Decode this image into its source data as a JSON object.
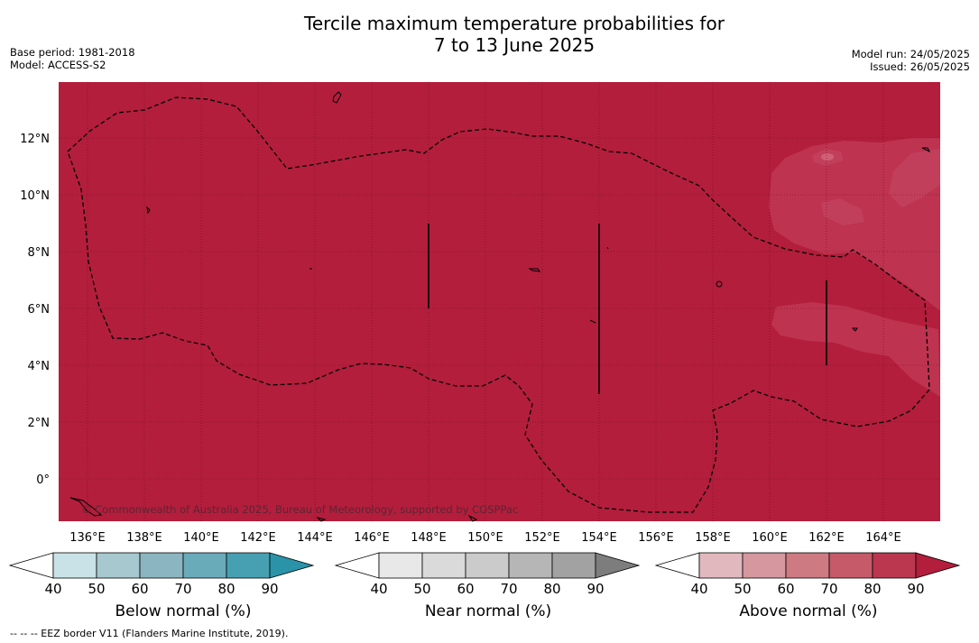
{
  "title": {
    "line1": "Tercile maximum temperature probabilities for",
    "line2": "7 to 13 June 2025"
  },
  "meta_left": {
    "base_period": "Base period: 1981-2018",
    "model": "Model: ACCESS-S2"
  },
  "meta_right": {
    "model_run": "Model run: 24/05/2025",
    "issued": "Issued: 26/05/2025"
  },
  "map": {
    "lat_labels": [
      "12°N",
      "10°N",
      "8°N",
      "6°N",
      "4°N",
      "2°N",
      "0°"
    ],
    "lon_labels": [
      "136°E",
      "138°E",
      "140°E",
      "142°E",
      "144°E",
      "146°E",
      "148°E",
      "150°E",
      "152°E",
      "154°E",
      "156°E",
      "158°E",
      "160°E",
      "162°E",
      "164°E"
    ],
    "copyright": "© Commonwealth of Australia 2025, Bureau of Meteorology, supported by COSPPac",
    "colors": {
      "above_dominant": "#b31e3c",
      "above_80": "#be3350"
    }
  },
  "colorbars": [
    {
      "label": "Below normal (%)",
      "ticks": [
        "40",
        "50",
        "60",
        "70",
        "80",
        "90"
      ],
      "colors": [
        "#ffffff",
        "#c9e2e8",
        "#a7c8ce",
        "#8bb6c1",
        "#6aabba",
        "#46a0b2",
        "#2a93a8"
      ]
    },
    {
      "label": "Near normal (%)",
      "ticks": [
        "40",
        "50",
        "60",
        "70",
        "80",
        "90"
      ],
      "colors": [
        "#ffffff",
        "#e8e8e8",
        "#dadada",
        "#cbcbcb",
        "#b6b6b6",
        "#a2a2a2",
        "#7d7d7d"
      ]
    },
    {
      "label": "Above normal (%)",
      "ticks": [
        "40",
        "50",
        "60",
        "70",
        "80",
        "90"
      ],
      "colors": [
        "#ffffff",
        "#e2b8bf",
        "#d6979e",
        "#ce7a82",
        "#c65a69",
        "#bb3750",
        "#b31e3c"
      ]
    }
  ],
  "footnote": "--  --  -- EEZ border V11 (Flanders Marine Institute, 2019)."
}
